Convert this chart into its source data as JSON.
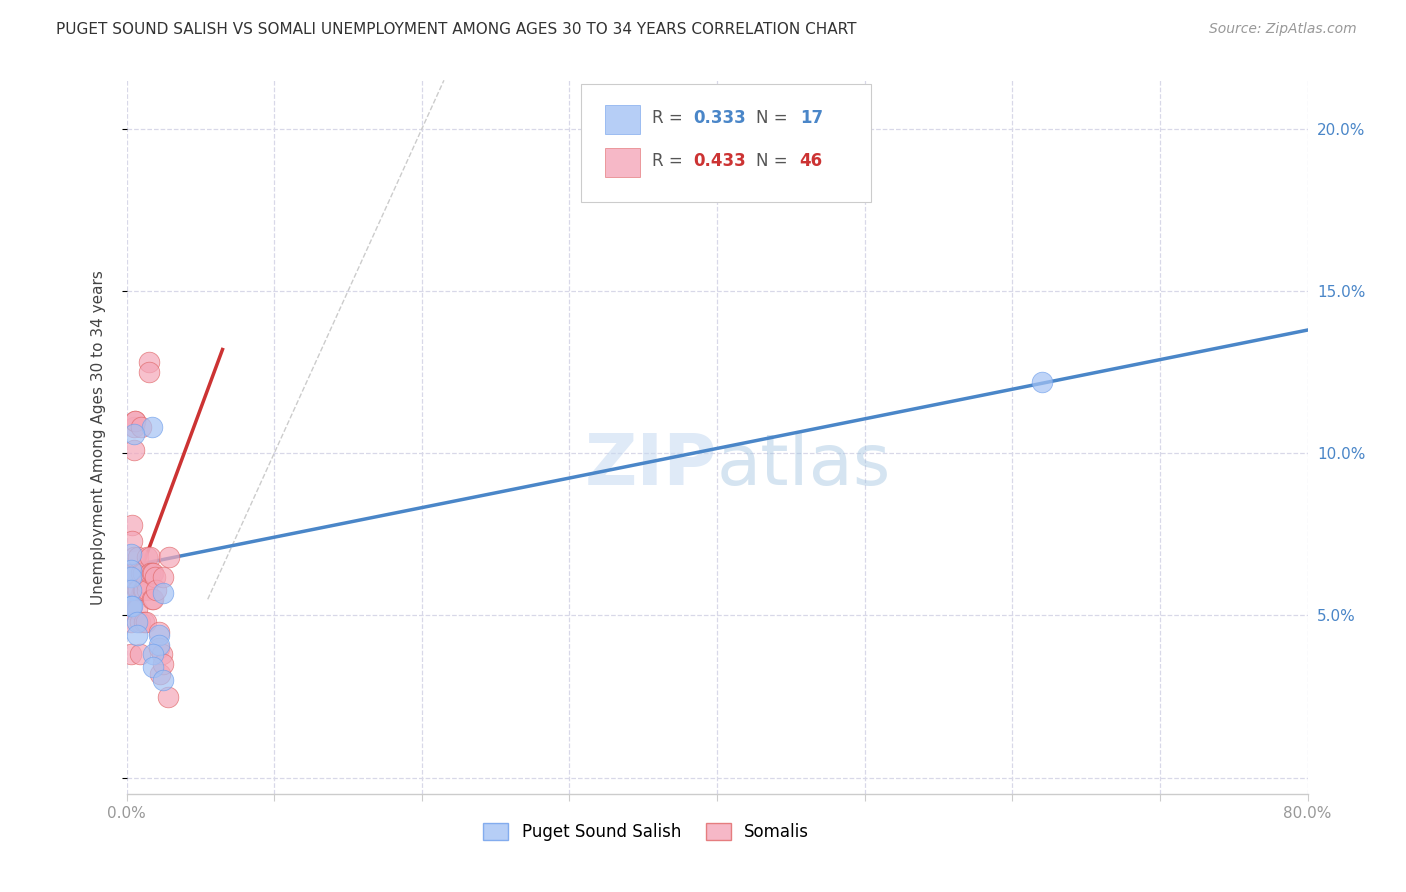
{
  "title": "PUGET SOUND SALISH VS SOMALI UNEMPLOYMENT AMONG AGES 30 TO 34 YEARS CORRELATION CHART",
  "source": "Source: ZipAtlas.com",
  "ylabel": "Unemployment Among Ages 30 to 34 years",
  "xlim": [
    0.0,
    0.8
  ],
  "ylim": [
    -0.005,
    0.215
  ],
  "xticks": [
    0.0,
    0.1,
    0.2,
    0.3,
    0.4,
    0.5,
    0.6,
    0.7,
    0.8
  ],
  "yticks": [
    0.0,
    0.05,
    0.1,
    0.15,
    0.2
  ],
  "background_color": "#ffffff",
  "grid_color": "#d8d8e8",
  "blue_color": "#a4c2f4",
  "pink_color": "#f4a7b9",
  "blue_edge_color": "#6d9eeb",
  "pink_edge_color": "#e06666",
  "blue_line_color": "#4a86c8",
  "pink_line_color": "#cc3333",
  "blue_R": 0.333,
  "blue_N": 17,
  "pink_R": 0.433,
  "pink_N": 46,
  "legend_label_blue": "Puget Sound Salish",
  "legend_label_pink": "Somalis",
  "blue_points_x": [
    0.017,
    0.003,
    0.005,
    0.003,
    0.003,
    0.003,
    0.003,
    0.004,
    0.007,
    0.007,
    0.022,
    0.022,
    0.018,
    0.018,
    0.025,
    0.025,
    0.62
  ],
  "blue_points_y": [
    0.108,
    0.069,
    0.106,
    0.064,
    0.062,
    0.058,
    0.053,
    0.053,
    0.048,
    0.044,
    0.044,
    0.041,
    0.038,
    0.034,
    0.057,
    0.03,
    0.122
  ],
  "pink_points_x": [
    0.003,
    0.003,
    0.003,
    0.003,
    0.004,
    0.004,
    0.004,
    0.005,
    0.005,
    0.005,
    0.006,
    0.006,
    0.007,
    0.007,
    0.008,
    0.008,
    0.009,
    0.009,
    0.01,
    0.01,
    0.011,
    0.011,
    0.012,
    0.012,
    0.013,
    0.013,
    0.014,
    0.014,
    0.015,
    0.015,
    0.016,
    0.016,
    0.017,
    0.017,
    0.018,
    0.018,
    0.019,
    0.02,
    0.022,
    0.022,
    0.023,
    0.024,
    0.025,
    0.025,
    0.028,
    0.029
  ],
  "pink_points_y": [
    0.062,
    0.052,
    0.048,
    0.038,
    0.078,
    0.073,
    0.063,
    0.108,
    0.101,
    0.068,
    0.11,
    0.11,
    0.058,
    0.052,
    0.068,
    0.058,
    0.048,
    0.038,
    0.108,
    0.063,
    0.063,
    0.058,
    0.058,
    0.048,
    0.06,
    0.048,
    0.068,
    0.058,
    0.128,
    0.125,
    0.068,
    0.063,
    0.063,
    0.055,
    0.063,
    0.055,
    0.062,
    0.058,
    0.045,
    0.04,
    0.032,
    0.038,
    0.062,
    0.035,
    0.025,
    0.068
  ],
  "blue_trendline_x": [
    0.0,
    0.8
  ],
  "blue_trendline_y": [
    0.065,
    0.138
  ],
  "pink_trendline_x": [
    0.0,
    0.065
  ],
  "pink_trendline_y": [
    0.052,
    0.132
  ],
  "diagonal_line_x": [
    0.055,
    0.215
  ],
  "diagonal_line_y": [
    0.055,
    0.215
  ]
}
